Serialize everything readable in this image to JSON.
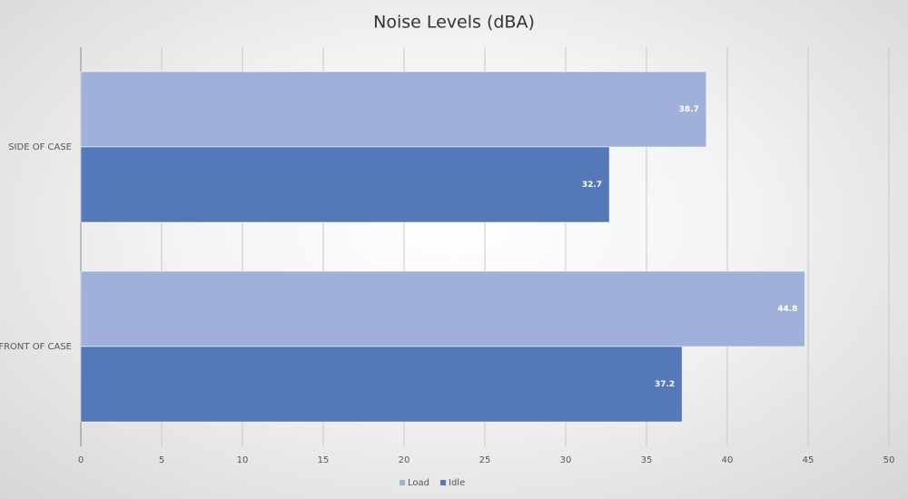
{
  "chart_data": {
    "type": "hbar",
    "title": "Noise Levels (dBA)",
    "categories": [
      "SIDE OF CASE",
      "FRONT OF CASE"
    ],
    "series": [
      {
        "name": "Load",
        "color": "#a0b0da",
        "values": [
          38.7,
          44.8
        ]
      },
      {
        "name": "Idle",
        "color": "#5579b8",
        "values": [
          32.7,
          37.2
        ]
      }
    ],
    "xlim": [
      0,
      50
    ],
    "xticks": [
      0,
      5,
      10,
      15,
      20,
      25,
      30,
      35,
      40,
      45,
      50
    ],
    "grid": true,
    "legend": "bottom"
  }
}
